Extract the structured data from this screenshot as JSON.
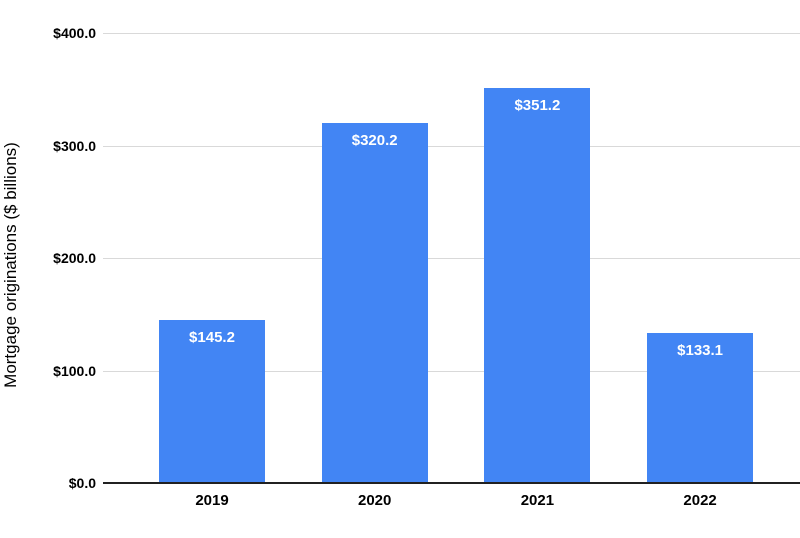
{
  "chart_data": {
    "type": "bar",
    "title": "",
    "xlabel": "",
    "ylabel": "Mortgage originations ($ billions)",
    "categories": [
      "2019",
      "2020",
      "2021",
      "2022"
    ],
    "values": [
      145.2,
      320.2,
      351.2,
      133.1
    ],
    "bar_labels": [
      "$145.2",
      "$320.2",
      "$351.2",
      "$133.1"
    ],
    "ylim": [
      0,
      400
    ],
    "yticks": [
      {
        "value": 0,
        "label": "$0.0"
      },
      {
        "value": 100,
        "label": "$100.0"
      },
      {
        "value": 200,
        "label": "$200.0"
      },
      {
        "value": 300,
        "label": "$300.0"
      },
      {
        "value": 400,
        "label": "$400.0"
      }
    ],
    "grid": true,
    "legend_position": "none",
    "colors": {
      "bar": "#4285f4",
      "bar_label_text": "#ffffff",
      "gridline": "#d9d9d9",
      "axis_line": "#212121",
      "text": "#000000",
      "background": "#ffffff"
    }
  }
}
